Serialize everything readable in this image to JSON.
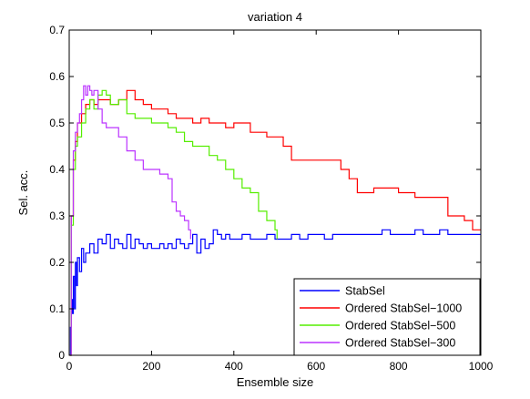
{
  "chart_data": {
    "type": "line",
    "title": "variation 4",
    "xlabel": "Ensemble size",
    "ylabel": "Sel. acc.",
    "xlim": [
      0,
      1000
    ],
    "ylim": [
      0,
      0.7
    ],
    "xticks": [
      0,
      200,
      400,
      600,
      800,
      1000
    ],
    "yticks": [
      0,
      0.1,
      0.2,
      0.3,
      0.4,
      0.5,
      0.6,
      0.7
    ],
    "grid": false,
    "legend": "bottom-right",
    "series": [
      {
        "name": "StabSel",
        "color": "#0000ff",
        "x": [
          1,
          3,
          5,
          8,
          10,
          13,
          15,
          18,
          20,
          25,
          30,
          35,
          40,
          50,
          60,
          70,
          80,
          90,
          100,
          110,
          120,
          130,
          140,
          150,
          160,
          170,
          180,
          190,
          200,
          210,
          220,
          230,
          240,
          250,
          260,
          270,
          280,
          290,
          300,
          310,
          320,
          330,
          340,
          350,
          360,
          370,
          380,
          390,
          400,
          420,
          440,
          460,
          480,
          500,
          520,
          540,
          560,
          580,
          600,
          620,
          640,
          660,
          680,
          700,
          720,
          740,
          760,
          780,
          800,
          820,
          840,
          860,
          880,
          900,
          920,
          940,
          960,
          980,
          1000
        ],
        "y": [
          0.0,
          0.06,
          0.12,
          0.09,
          0.17,
          0.1,
          0.2,
          0.15,
          0.21,
          0.18,
          0.23,
          0.2,
          0.22,
          0.24,
          0.22,
          0.25,
          0.24,
          0.26,
          0.23,
          0.25,
          0.24,
          0.23,
          0.26,
          0.23,
          0.25,
          0.24,
          0.23,
          0.24,
          0.23,
          0.23,
          0.24,
          0.23,
          0.24,
          0.23,
          0.25,
          0.24,
          0.23,
          0.24,
          0.26,
          0.22,
          0.25,
          0.23,
          0.24,
          0.27,
          0.26,
          0.25,
          0.26,
          0.25,
          0.25,
          0.26,
          0.25,
          0.25,
          0.26,
          0.25,
          0.25,
          0.26,
          0.25,
          0.26,
          0.26,
          0.25,
          0.26,
          0.26,
          0.26,
          0.26,
          0.26,
          0.26,
          0.27,
          0.26,
          0.26,
          0.26,
          0.27,
          0.26,
          0.26,
          0.27,
          0.26,
          0.26,
          0.26,
          0.26,
          0.26
        ]
      },
      {
        "name": "Ordered StabSel−1000",
        "color": "#ff0000",
        "x": [
          1,
          5,
          10,
          15,
          20,
          30,
          40,
          50,
          60,
          70,
          80,
          90,
          100,
          120,
          140,
          160,
          180,
          200,
          220,
          240,
          260,
          280,
          300,
          320,
          340,
          360,
          380,
          400,
          420,
          440,
          460,
          480,
          500,
          520,
          540,
          560,
          580,
          600,
          620,
          640,
          660,
          680,
          700,
          720,
          740,
          760,
          780,
          800,
          840,
          880,
          920,
          960,
          980,
          1000
        ],
        "y": [
          0.0,
          0.3,
          0.42,
          0.46,
          0.5,
          0.52,
          0.54,
          0.55,
          0.54,
          0.55,
          0.55,
          0.55,
          0.54,
          0.55,
          0.57,
          0.55,
          0.54,
          0.53,
          0.53,
          0.52,
          0.51,
          0.51,
          0.5,
          0.51,
          0.5,
          0.5,
          0.49,
          0.5,
          0.5,
          0.48,
          0.48,
          0.47,
          0.47,
          0.45,
          0.42,
          0.42,
          0.42,
          0.42,
          0.42,
          0.42,
          0.4,
          0.38,
          0.35,
          0.35,
          0.36,
          0.36,
          0.36,
          0.35,
          0.34,
          0.34,
          0.3,
          0.29,
          0.27,
          0.27
        ]
      },
      {
        "name": "Ordered StabSel−500",
        "color": "#55ee00",
        "x": [
          1,
          5,
          10,
          15,
          20,
          30,
          40,
          50,
          60,
          70,
          80,
          90,
          100,
          120,
          140,
          160,
          180,
          200,
          220,
          240,
          260,
          280,
          300,
          320,
          340,
          360,
          380,
          400,
          420,
          440,
          460,
          480,
          500,
          505
        ],
        "y": [
          0.0,
          0.28,
          0.4,
          0.45,
          0.47,
          0.5,
          0.53,
          0.55,
          0.53,
          0.56,
          0.57,
          0.56,
          0.54,
          0.55,
          0.52,
          0.51,
          0.51,
          0.5,
          0.5,
          0.49,
          0.48,
          0.46,
          0.45,
          0.45,
          0.43,
          0.42,
          0.4,
          0.38,
          0.36,
          0.35,
          0.31,
          0.29,
          0.27,
          0.25
        ]
      },
      {
        "name": "Ordered StabSel−300",
        "color": "#bb33ff",
        "x": [
          1,
          5,
          10,
          15,
          20,
          25,
          30,
          35,
          40,
          45,
          50,
          55,
          60,
          70,
          80,
          90,
          100,
          120,
          140,
          160,
          180,
          200,
          220,
          240,
          250,
          260,
          270,
          280,
          290,
          295
        ],
        "y": [
          0.0,
          0.3,
          0.44,
          0.48,
          0.5,
          0.52,
          0.55,
          0.58,
          0.56,
          0.58,
          0.57,
          0.56,
          0.57,
          0.53,
          0.5,
          0.49,
          0.49,
          0.47,
          0.44,
          0.42,
          0.4,
          0.4,
          0.39,
          0.38,
          0.33,
          0.31,
          0.3,
          0.29,
          0.27,
          0.25
        ]
      }
    ]
  }
}
